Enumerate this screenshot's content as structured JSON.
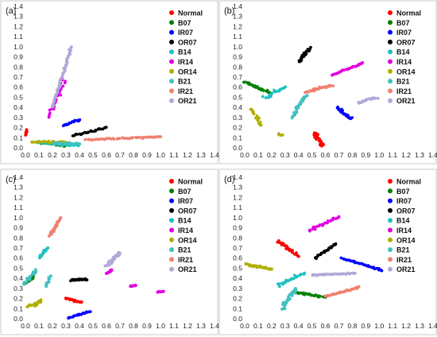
{
  "figure": {
    "colors": {
      "Normal": "#ff0000",
      "B07": "#008000",
      "IR07": "#0000ff",
      "OR07": "#000000",
      "B14": "#20c0c0",
      "IR14": "#e000e0",
      "OR14": "#b0b000",
      "B21": "#40c0c0",
      "IR21": "#f08070",
      "OR21": "#b0a8d8"
    }
  },
  "chart_data": [
    {
      "type": "scatter",
      "title": "(a)",
      "xlim": [
        0,
        1.4
      ],
      "ylim": [
        0,
        1.4
      ],
      "xticks": [
        "0.0",
        "0.1",
        "0.2",
        "0.3",
        "0.4",
        "0.5",
        "0.6",
        "0.7",
        "0.8",
        "0.9",
        "1.0",
        "1.1",
        "1.2",
        "1.3",
        "1.4"
      ],
      "yticks": [
        "0.0",
        "0.1",
        "0.2",
        "0.3",
        "0.4",
        "0.5",
        "0.6",
        "0.7",
        "0.8",
        "0.9",
        "1.0",
        "1.1",
        "1.2",
        "1.3",
        "1.4"
      ],
      "legend_position": "top-right",
      "series": [
        {
          "name": "Normal",
          "clusters": [
            {
              "from": [
                0.0,
                0.12
              ],
              "to": [
                0.01,
                0.18
              ],
              "n": 10,
              "spread": 0.01
            }
          ]
        },
        {
          "name": "B07",
          "clusters": [
            {
              "from": [
                0.12,
                0.05
              ],
              "to": [
                0.3,
                0.02
              ],
              "n": 18,
              "spread": 0.012
            }
          ]
        },
        {
          "name": "IR07",
          "clusters": [
            {
              "from": [
                0.28,
                0.22
              ],
              "to": [
                0.4,
                0.28
              ],
              "n": 18,
              "spread": 0.012
            }
          ]
        },
        {
          "name": "OR07",
          "clusters": [
            {
              "from": [
                0.35,
                0.12
              ],
              "to": [
                0.6,
                0.2
              ],
              "n": 22,
              "spread": 0.01
            }
          ]
        },
        {
          "name": "B14",
          "clusters": [
            {
              "from": [
                0.1,
                0.05
              ],
              "to": [
                0.4,
                0.02
              ],
              "n": 26,
              "spread": 0.012
            }
          ]
        },
        {
          "name": "IR14",
          "clusters": [
            {
              "from": [
                0.18,
                0.3
              ],
              "to": [
                0.28,
                0.68
              ],
              "n": 24,
              "spread": 0.03
            }
          ]
        },
        {
          "name": "OR14",
          "clusters": [
            {
              "from": [
                0.05,
                0.06
              ],
              "to": [
                0.3,
                0.06
              ],
              "n": 22,
              "spread": 0.012
            }
          ]
        },
        {
          "name": "B21",
          "clusters": [
            {
              "from": [
                0.2,
                0.05
              ],
              "to": [
                0.4,
                0.04
              ],
              "n": 18,
              "spread": 0.012
            }
          ]
        },
        {
          "name": "IR21",
          "clusters": [
            {
              "from": [
                0.45,
                0.08
              ],
              "to": [
                1.0,
                0.11
              ],
              "n": 45,
              "spread": 0.01
            }
          ]
        },
        {
          "name": "OR21",
          "clusters": [
            {
              "from": [
                0.2,
                0.4
              ],
              "to": [
                0.34,
                1.0
              ],
              "n": 45,
              "spread": 0.012
            }
          ]
        }
      ]
    },
    {
      "type": "scatter",
      "title": "(b)",
      "xlim": [
        0,
        1.4
      ],
      "ylim": [
        0,
        1.4
      ],
      "xticks": [
        "0.0",
        "0.1",
        "0.2",
        "0.3",
        "0.4",
        "0.5",
        "0.6",
        "0.7",
        "0.8",
        "0.9",
        "1.0",
        "1.1",
        "1.2",
        "1.3",
        "1.4"
      ],
      "yticks": [
        "0.0",
        "0.1",
        "0.2",
        "0.3",
        "0.4",
        "0.5",
        "0.6",
        "0.7",
        "0.8",
        "0.9",
        "1.0",
        "1.1",
        "1.2",
        "1.3",
        "1.4"
      ],
      "legend_position": "top-right",
      "series": [
        {
          "name": "Normal",
          "clusters": [
            {
              "from": [
                0.52,
                0.15
              ],
              "to": [
                0.58,
                0.02
              ],
              "n": 30,
              "spread": 0.025
            }
          ]
        },
        {
          "name": "B07",
          "clusters": [
            {
              "from": [
                0.0,
                0.65
              ],
              "to": [
                0.18,
                0.55
              ],
              "n": 24,
              "spread": 0.015
            }
          ]
        },
        {
          "name": "IR07",
          "clusters": [
            {
              "from": [
                0.68,
                0.4
              ],
              "to": [
                0.8,
                0.28
              ],
              "n": 26,
              "spread": 0.02
            }
          ]
        },
        {
          "name": "OR07",
          "clusters": [
            {
              "from": [
                0.4,
                0.85
              ],
              "to": [
                0.48,
                0.98
              ],
              "n": 26,
              "spread": 0.02
            }
          ]
        },
        {
          "name": "B14",
          "clusters": [
            {
              "from": [
                0.15,
                0.5
              ],
              "to": [
                0.3,
                0.6
              ],
              "n": 18,
              "spread": 0.02
            }
          ]
        },
        {
          "name": "IR14",
          "clusters": [
            {
              "from": [
                0.65,
                0.72
              ],
              "to": [
                0.88,
                0.84
              ],
              "n": 26,
              "spread": 0.01
            }
          ]
        },
        {
          "name": "OR14",
          "clusters": [
            {
              "from": [
                0.05,
                0.38
              ],
              "to": [
                0.12,
                0.22
              ],
              "n": 16,
              "spread": 0.02
            },
            {
              "from": [
                0.25,
                0.14
              ],
              "to": [
                0.28,
                0.12
              ],
              "n": 5,
              "spread": 0.01
            }
          ]
        },
        {
          "name": "B21",
          "clusters": [
            {
              "from": [
                0.35,
                0.3
              ],
              "to": [
                0.45,
                0.52
              ],
              "n": 24,
              "spread": 0.02
            }
          ]
        },
        {
          "name": "IR21",
          "clusters": [
            {
              "from": [
                0.45,
                0.55
              ],
              "to": [
                0.65,
                0.62
              ],
              "n": 28,
              "spread": 0.015
            }
          ]
        },
        {
          "name": "OR21",
          "clusters": [
            {
              "from": [
                0.85,
                0.45
              ],
              "to": [
                0.98,
                0.5
              ],
              "n": 20,
              "spread": 0.02
            }
          ]
        }
      ]
    },
    {
      "type": "scatter",
      "title": "(c)",
      "xlim": [
        0,
        1.4
      ],
      "ylim": [
        0,
        1.4
      ],
      "xticks": [
        "0.0",
        "0.1",
        "0.2",
        "0.3",
        "0.4",
        "0.5",
        "0.6",
        "0.7",
        "0.8",
        "0.9",
        "1.0",
        "1.1",
        "1.2",
        "1.3",
        "1.4"
      ],
      "yticks": [
        "0.0",
        "0.1",
        "0.2",
        "0.3",
        "0.4",
        "0.5",
        "0.6",
        "0.7",
        "0.8",
        "0.9",
        "1.0",
        "1.1",
        "1.2",
        "1.3",
        "1.4"
      ],
      "legend_position": "top-right",
      "series": [
        {
          "name": "Normal",
          "clusters": [
            {
              "from": [
                0.3,
                0.2
              ],
              "to": [
                0.42,
                0.16
              ],
              "n": 16,
              "spread": 0.012
            }
          ]
        },
        {
          "name": "B07",
          "clusters": [
            {
              "from": [
                0.0,
                0.35
              ],
              "to": [
                0.06,
                0.42
              ],
              "n": 22,
              "spread": 0.02
            }
          ]
        },
        {
          "name": "IR07",
          "clusters": [
            {
              "from": [
                0.32,
                0.01
              ],
              "to": [
                0.48,
                0.07
              ],
              "n": 18,
              "spread": 0.012
            }
          ]
        },
        {
          "name": "OR07",
          "clusters": [
            {
              "from": [
                0.34,
                0.38
              ],
              "to": [
                0.45,
                0.39
              ],
              "n": 20,
              "spread": 0.012
            }
          ]
        },
        {
          "name": "B14",
          "clusters": [
            {
              "from": [
                0.1,
                0.6
              ],
              "to": [
                0.16,
                0.7
              ],
              "n": 20,
              "spread": 0.015
            }
          ]
        },
        {
          "name": "IR14",
          "clusters": [
            {
              "from": [
                0.6,
                0.45
              ],
              "to": [
                0.64,
                0.48
              ],
              "n": 10,
              "spread": 0.012
            },
            {
              "from": [
                0.78,
                0.32
              ],
              "to": [
                0.82,
                0.33
              ],
              "n": 10,
              "spread": 0.01
            },
            {
              "from": [
                0.98,
                0.26
              ],
              "to": [
                1.02,
                0.27
              ],
              "n": 8,
              "spread": 0.008
            }
          ]
        },
        {
          "name": "OR14",
          "clusters": [
            {
              "from": [
                0.03,
                0.12
              ],
              "to": [
                0.12,
                0.18
              ],
              "n": 22,
              "spread": 0.025
            }
          ]
        },
        {
          "name": "B21",
          "clusters": [
            {
              "from": [
                0.0,
                0.35
              ],
              "to": [
                0.08,
                0.48
              ],
              "n": 18,
              "spread": 0.02
            },
            {
              "from": [
                0.15,
                0.32
              ],
              "to": [
                0.18,
                0.42
              ],
              "n": 10,
              "spread": 0.015
            }
          ]
        },
        {
          "name": "IR21",
          "clusters": [
            {
              "from": [
                0.18,
                0.82
              ],
              "to": [
                0.26,
                1.0
              ],
              "n": 26,
              "spread": 0.012
            }
          ]
        },
        {
          "name": "OR21",
          "clusters": [
            {
              "from": [
                0.6,
                0.52
              ],
              "to": [
                0.7,
                0.66
              ],
              "n": 26,
              "spread": 0.02
            }
          ]
        }
      ]
    },
    {
      "type": "scatter",
      "title": "(d)",
      "xlim": [
        0,
        1.4
      ],
      "ylim": [
        0,
        1.4
      ],
      "xticks": [
        "0.0",
        "0.1",
        "0.2",
        "0.3",
        "0.4",
        "0.5",
        "0.6",
        "0.7",
        "0.8",
        "0.9",
        "1.0",
        "1.1",
        "1.2",
        "1.3",
        "1.4"
      ],
      "yticks": [
        "0.0",
        "0.1",
        "0.2",
        "0.3",
        "0.4",
        "0.5",
        "0.6",
        "0.7",
        "0.8",
        "0.9",
        "1.0",
        "1.1",
        "1.2",
        "1.3",
        "1.4"
      ],
      "legend_position": "top-right",
      "series": [
        {
          "name": "Normal",
          "clusters": [
            {
              "from": [
                0.25,
                0.77
              ],
              "to": [
                0.4,
                0.62
              ],
              "n": 28,
              "spread": 0.02
            }
          ]
        },
        {
          "name": "B07",
          "clusters": [
            {
              "from": [
                0.38,
                0.26
              ],
              "to": [
                0.6,
                0.21
              ],
              "n": 24,
              "spread": 0.015
            }
          ]
        },
        {
          "name": "IR07",
          "clusters": [
            {
              "from": [
                0.72,
                0.6
              ],
              "to": [
                1.02,
                0.48
              ],
              "n": 30,
              "spread": 0.01
            }
          ]
        },
        {
          "name": "OR07",
          "clusters": [
            {
              "from": [
                0.52,
                0.6
              ],
              "to": [
                0.68,
                0.74
              ],
              "n": 26,
              "spread": 0.015
            }
          ]
        },
        {
          "name": "B14",
          "clusters": [
            {
              "from": [
                0.25,
                0.33
              ],
              "to": [
                0.45,
                0.46
              ],
              "n": 24,
              "spread": 0.02
            }
          ]
        },
        {
          "name": "IR14",
          "clusters": [
            {
              "from": [
                0.48,
                0.87
              ],
              "to": [
                0.7,
                1.01
              ],
              "n": 26,
              "spread": 0.015
            }
          ]
        },
        {
          "name": "OR14",
          "clusters": [
            {
              "from": [
                0.0,
                0.54
              ],
              "to": [
                0.2,
                0.49
              ],
              "n": 30,
              "spread": 0.012
            }
          ]
        },
        {
          "name": "B21",
          "clusters": [
            {
              "from": [
                0.28,
                0.1
              ],
              "to": [
                0.38,
                0.3
              ],
              "n": 26,
              "spread": 0.025
            }
          ]
        },
        {
          "name": "IR21",
          "clusters": [
            {
              "from": [
                0.6,
                0.22
              ],
              "to": [
                0.85,
                0.31
              ],
              "n": 30,
              "spread": 0.01
            }
          ]
        },
        {
          "name": "OR21",
          "clusters": [
            {
              "from": [
                0.5,
                0.43
              ],
              "to": [
                0.82,
                0.45
              ],
              "n": 32,
              "spread": 0.01
            }
          ]
        }
      ]
    }
  ]
}
